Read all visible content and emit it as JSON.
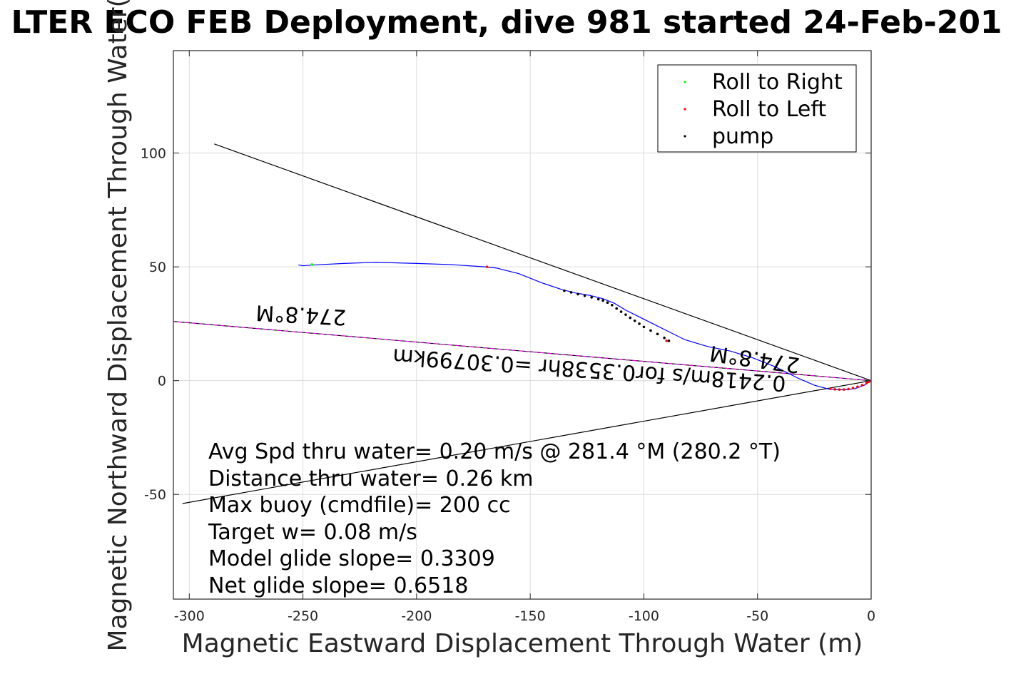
{
  "chart_data": {
    "type": "line",
    "title": "LTER ECO FEB Deployment, dive 981 started 24-Feb-201",
    "xlabel": "Magnetic Eastward Displacement Through Water (m)",
    "ylabel": "Magnetic Northward Displacement Through Water(",
    "xlim": [
      -307,
      0
    ],
    "ylim": [
      -96,
      145
    ],
    "xticks": [
      -300,
      -250,
      -200,
      -150,
      -100,
      -50,
      0
    ],
    "yticks": [
      -50,
      0,
      50,
      100
    ],
    "xtick_labels": [
      "-300",
      "-250",
      "-200",
      "-150",
      "-100",
      "-50",
      "0"
    ],
    "ytick_labels": [
      "-50",
      "0",
      "50",
      "100"
    ],
    "grid": true,
    "legend_position": "top-right",
    "legend": [
      {
        "label": "Roll to Right",
        "color": "#00ff00"
      },
      {
        "label": "Roll to Left",
        "color": "#ff0000"
      },
      {
        "label": "pump",
        "color": "#000000"
      }
    ],
    "track": {
      "color": "#0000ff",
      "x": [
        0,
        -3,
        -7,
        -11,
        -15,
        -19,
        -25,
        -32,
        -42,
        -52,
        -62,
        -72,
        -82,
        -90,
        -96,
        -102,
        -108,
        -113,
        -118,
        -124,
        -130,
        -136,
        -145,
        -155,
        -165,
        -170,
        -185,
        -200,
        -218,
        -232,
        -242,
        -250,
        -252
      ],
      "y": [
        0,
        -2,
        -3.5,
        -4,
        -4,
        -3.6,
        -2,
        1,
        6,
        10,
        13,
        15,
        18,
        22,
        25,
        28,
        31,
        34,
        36,
        37.5,
        38.5,
        40,
        43,
        47,
        49.5,
        50,
        51,
        51.5,
        52,
        51.5,
        51,
        50.5,
        50.8
      ]
    },
    "pump_points": {
      "color": "#000000",
      "x": [
        -135,
        -132,
        -129,
        -126,
        -123,
        -120,
        -118,
        -116,
        -114,
        -112,
        -110,
        -108,
        -106,
        -104,
        -102,
        -100,
        -97,
        -94,
        -91,
        -89
      ],
      "y": [
        39.5,
        38.8,
        38,
        37.3,
        36.6,
        35.8,
        35.2,
        34.3,
        33.2,
        31.7,
        30.3,
        29,
        27.6,
        26.3,
        25,
        23.6,
        22,
        20.5,
        18.8,
        17.5
      ]
    },
    "roll_left_points": {
      "color": "#ff0000",
      "x": [
        -169,
        -90,
        -18,
        -16,
        -14,
        -12,
        -10,
        -8,
        -6,
        -4,
        -2,
        -1
      ],
      "y": [
        50,
        17.5,
        -3.6,
        -3.8,
        -3.9,
        -3.9,
        -3.7,
        -3.3,
        -2.7,
        -2,
        -1.1,
        -0.5
      ]
    },
    "roll_right_points": {
      "color": "#00ff00",
      "x": [
        -246
      ],
      "y": [
        51
      ]
    },
    "reference_lines": [
      {
        "name": "",
        "color": "#000000",
        "x": [
          0,
          -289
        ],
        "y": [
          0,
          104
        ]
      },
      {
        "name": "",
        "color": "#000000",
        "x": [
          0,
          -303
        ],
        "y": [
          0,
          -54
        ]
      },
      {
        "name": "",
        "color": "#000000",
        "x": [
          0,
          -307
        ],
        "y": [
          0,
          26
        ]
      },
      {
        "name": "",
        "color": "#ff00ff",
        "x": [
          0,
          -307
        ],
        "y": [
          0,
          26
        ]
      }
    ],
    "rotated_labels": [
      {
        "text": "274.8°M",
        "color": "#000000"
      },
      {
        "text": "274.8°M",
        "color": "#000000"
      },
      {
        "text": "0.2418m/s for0.3538hr =0.30799km",
        "color": "#000000"
      }
    ],
    "annotations": [
      "Avg Spd thru water=  0.20 m/s @ 281.4 °M (280.2 °T)",
      "Distance thru water=  0.26 km",
      "Max buoy (cmdfile)= 200 cc",
      "Target w= 0.08 m/s",
      "Model glide slope= 0.3309",
      "Net glide slope= 0.6518"
    ]
  }
}
